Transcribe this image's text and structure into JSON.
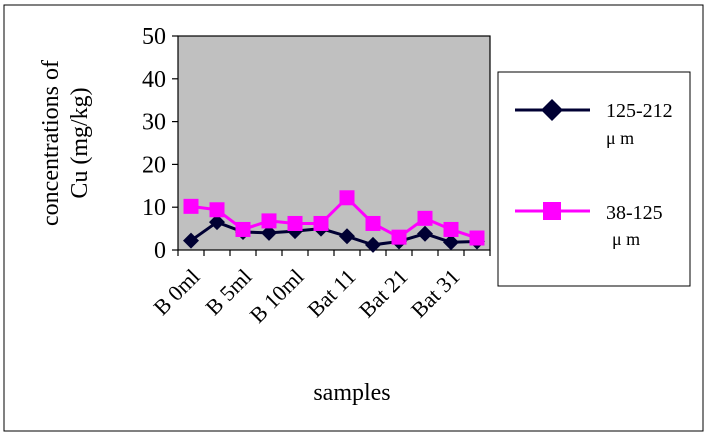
{
  "chart_data": {
    "type": "line",
    "title": "",
    "xlabel": "samples",
    "ylabel_lines": [
      "concentrations of",
      "Cu (mg/kg)"
    ],
    "ylim": [
      0,
      50
    ],
    "yticks": [
      "0",
      "10",
      "20",
      "30",
      "40",
      "50"
    ],
    "tick_labels": [
      "B 0ml",
      "B 5ml",
      "B 10ml",
      "Bat 11",
      "Bat 21",
      "Bat 31"
    ],
    "grid": false,
    "legend_position": "right",
    "plot_background": "#c0c0c0",
    "series": [
      {
        "name_lines": [
          "125-212",
          "μ m"
        ],
        "color": "#000033",
        "marker": "diamond",
        "values": [
          2.2,
          6.5,
          4.2,
          4.0,
          4.4,
          5.0,
          3.2,
          1.2,
          2.0,
          3.8,
          1.8,
          2.0
        ]
      },
      {
        "name_lines": [
          "38-125",
          "μ m"
        ],
        "color": "#ff00ff",
        "marker": "square",
        "values": [
          10.2,
          9.4,
          4.8,
          6.8,
          6.2,
          6.2,
          12.2,
          6.2,
          3.0,
          7.4,
          4.8,
          2.8
        ]
      }
    ]
  }
}
